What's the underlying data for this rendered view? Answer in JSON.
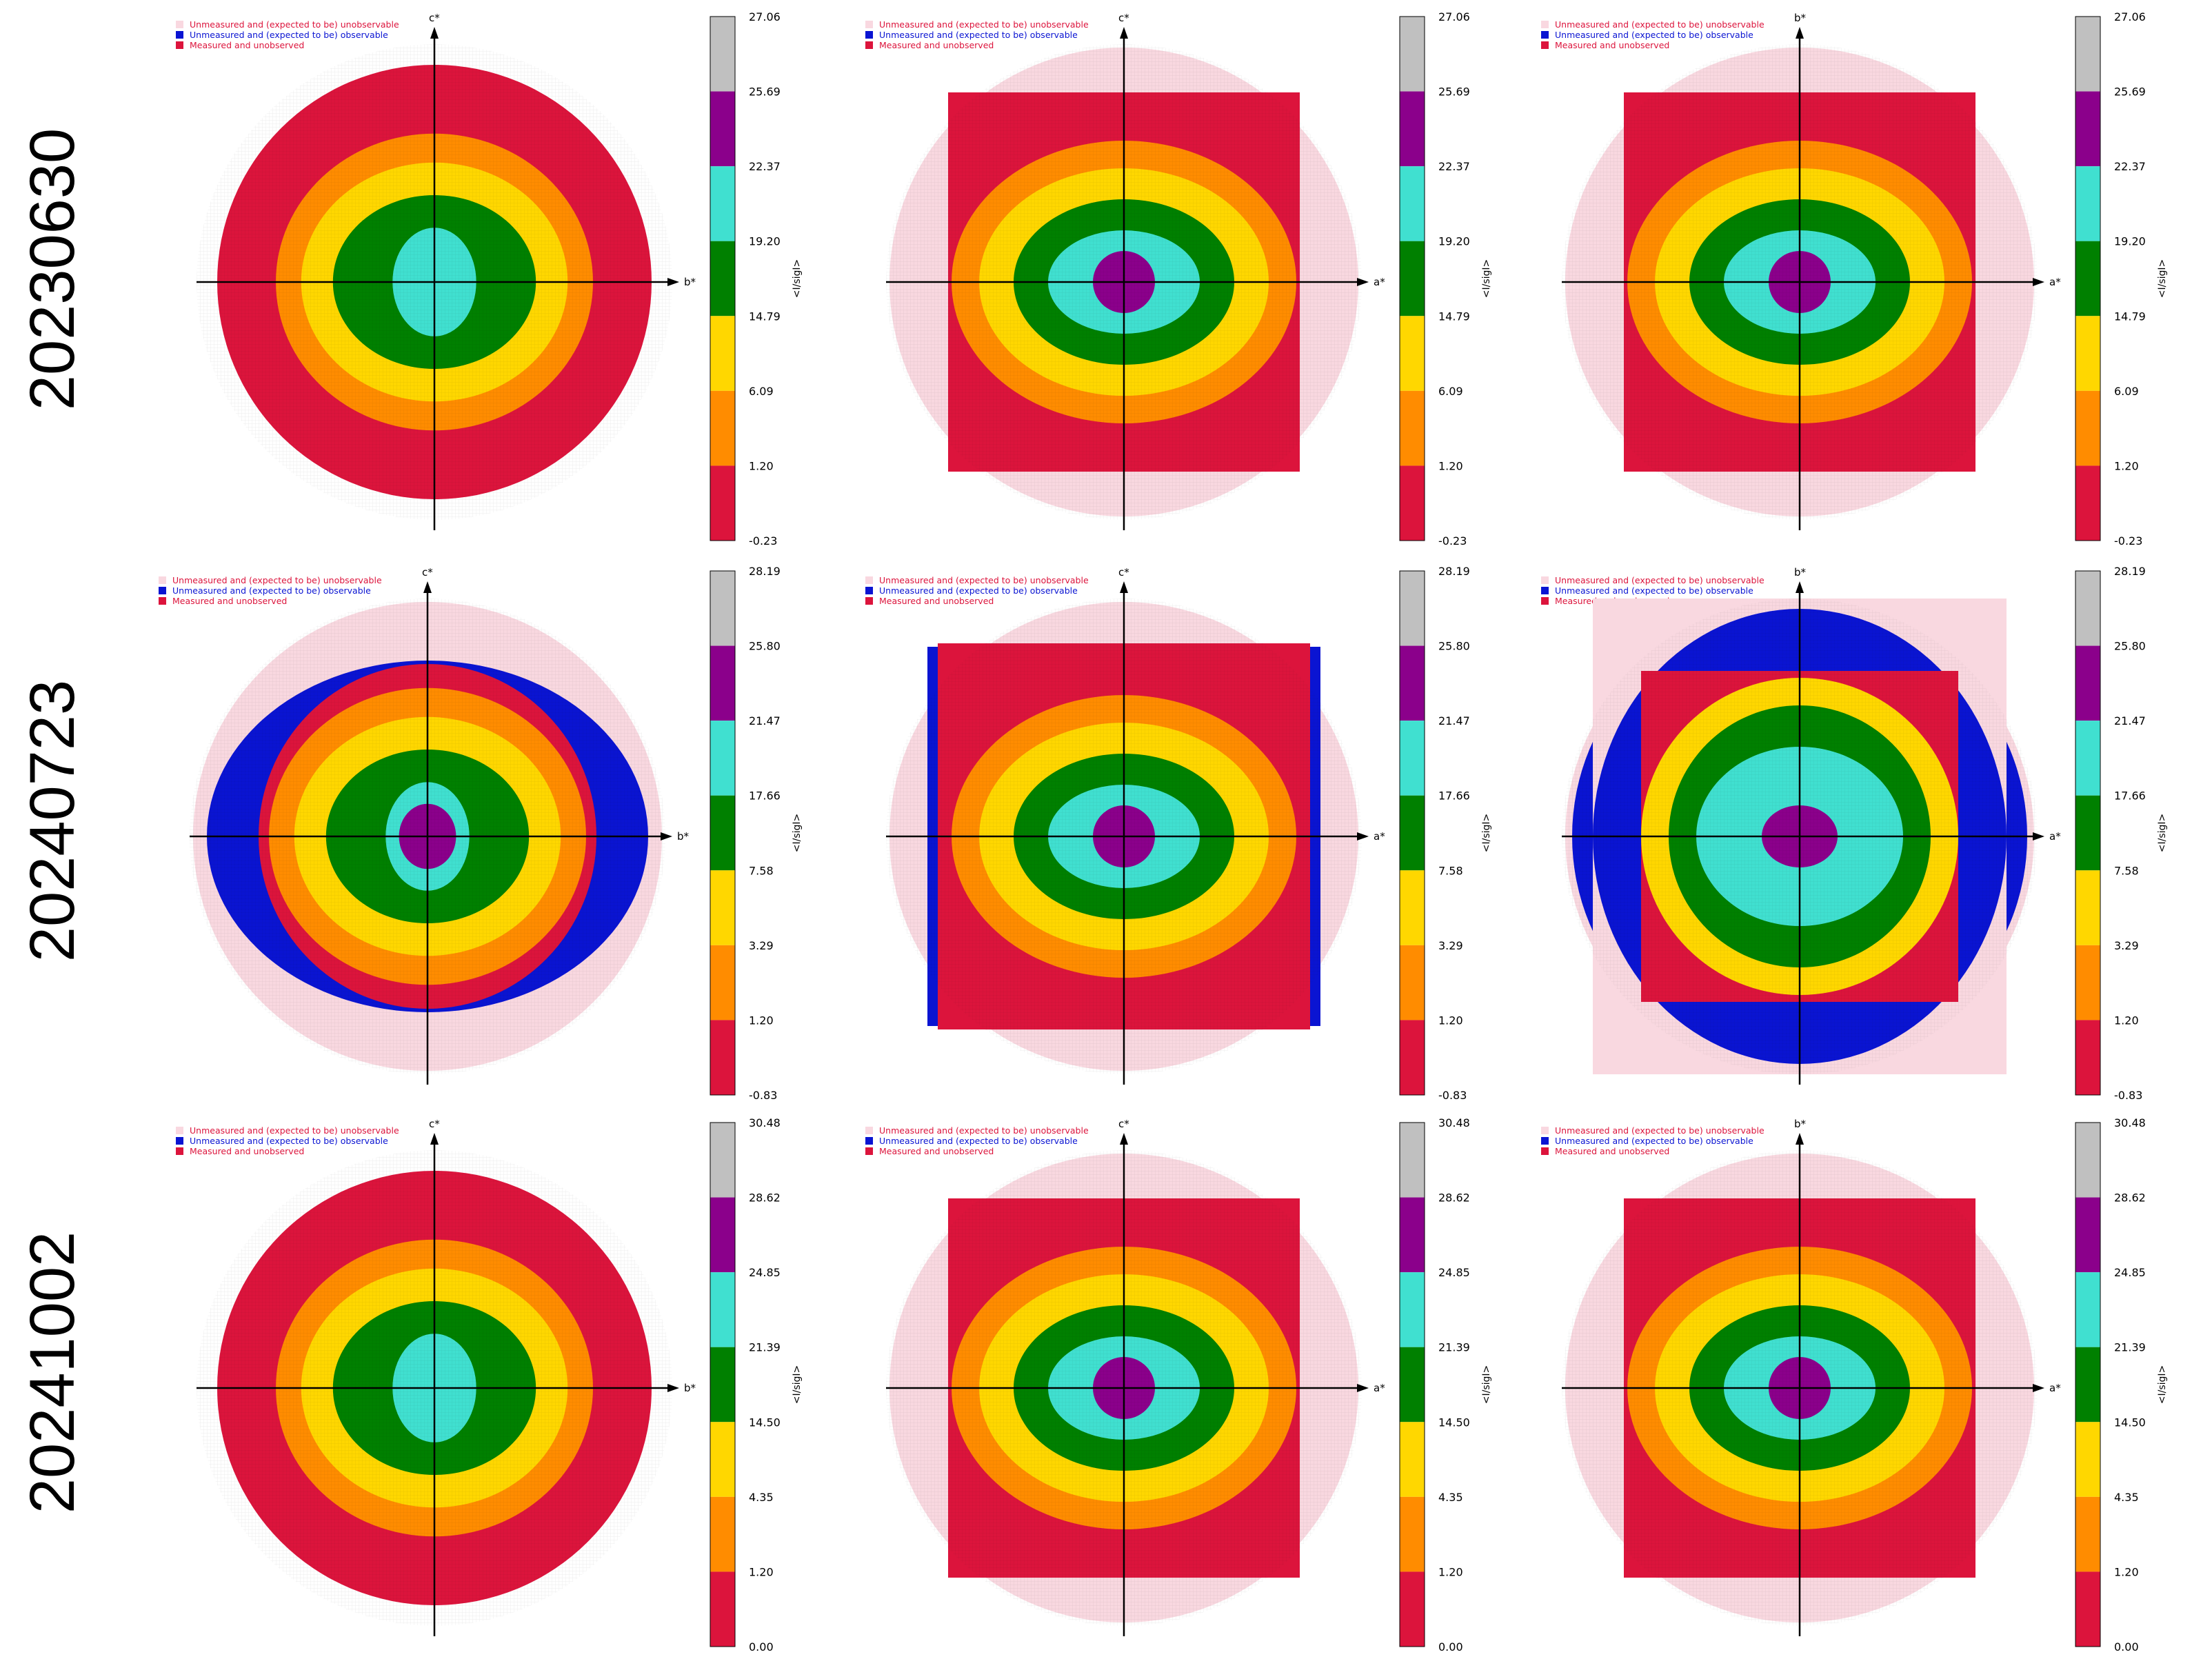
{
  "palette": {
    "red": "#dc143c",
    "orange": "#ff8c00",
    "gold": "#ffd700",
    "green": "#008000",
    "turquoise": "#40e0d0",
    "purple": "#8b008b",
    "grey": "#c0c0c0",
    "pink": "#f9d8e0",
    "blue": "#0a14d2"
  },
  "legend": [
    {
      "label": "Unmeasured and (expected to be) unobservable",
      "swatch": "pink",
      "text_color": "#dc143c"
    },
    {
      "label": "Unmeasured and (expected to be) observable",
      "swatch": "blue",
      "text_color": "#0a14d2"
    },
    {
      "label": "Measured and unobserved",
      "swatch": "red",
      "text_color": "#dc143c"
    }
  ],
  "colorbar_title": "<I/sigI>",
  "chart_data": [
    {
      "type": "heatmap",
      "row": 0,
      "col": 0,
      "row_label": "20230630",
      "view": "b*-c* plane",
      "x_axis_label": "b*",
      "y_axis_label": "c*",
      "colorbar_ticks": [
        "27.06",
        "25.69",
        "22.37",
        "19.20",
        "14.79",
        "6.09",
        "1.20",
        "-0.23"
      ],
      "observable_ring": false,
      "square_mask": false
    },
    {
      "type": "heatmap",
      "row": 0,
      "col": 1,
      "row_label": "20230630",
      "view": "a*-c* plane",
      "x_axis_label": "a*",
      "y_axis_label": "c*",
      "colorbar_ticks": [
        "27.06",
        "25.69",
        "22.37",
        "19.20",
        "14.79",
        "6.09",
        "1.20",
        "-0.23"
      ],
      "observable_ring": false,
      "square_mask": true
    },
    {
      "type": "heatmap",
      "row": 0,
      "col": 2,
      "row_label": "20230630",
      "view": "a*-b* plane",
      "x_axis_label": "a*",
      "y_axis_label": "b*",
      "colorbar_ticks": [
        "27.06",
        "25.69",
        "22.37",
        "19.20",
        "14.79",
        "6.09",
        "1.20",
        "-0.23"
      ],
      "observable_ring": false,
      "square_mask": true
    },
    {
      "type": "heatmap",
      "row": 1,
      "col": 0,
      "row_label": "20240723",
      "view": "b*-c* plane",
      "x_axis_label": "b*",
      "y_axis_label": "c*",
      "colorbar_ticks": [
        "28.19",
        "25.80",
        "21.47",
        "17.66",
        "7.58",
        "3.29",
        "1.20",
        "-0.83"
      ],
      "observable_ring": true,
      "square_mask": false
    },
    {
      "type": "heatmap",
      "row": 1,
      "col": 1,
      "row_label": "20240723",
      "view": "a*-c* plane",
      "x_axis_label": "a*",
      "y_axis_label": "c*",
      "colorbar_ticks": [
        "28.19",
        "25.80",
        "21.47",
        "17.66",
        "7.58",
        "3.29",
        "1.20",
        "-0.83"
      ],
      "observable_ring": true,
      "square_mask": true
    },
    {
      "type": "heatmap",
      "row": 1,
      "col": 2,
      "row_label": "20240723",
      "view": "a*-b* plane",
      "x_axis_label": "a*",
      "y_axis_label": "b*",
      "colorbar_ticks": [
        "28.19",
        "25.80",
        "21.47",
        "17.66",
        "7.58",
        "3.29",
        "1.20",
        "-0.83"
      ],
      "observable_ring": true,
      "square_mask": true
    },
    {
      "type": "heatmap",
      "row": 2,
      "col": 0,
      "row_label": "20241002",
      "view": "b*-c* plane",
      "x_axis_label": "b*",
      "y_axis_label": "c*",
      "colorbar_ticks": [
        "30.48",
        "28.62",
        "24.85",
        "21.39",
        "14.50",
        "4.35",
        "1.20",
        "0.00"
      ],
      "observable_ring": false,
      "square_mask": false
    },
    {
      "type": "heatmap",
      "row": 2,
      "col": 1,
      "row_label": "20241002",
      "view": "a*-c* plane",
      "x_axis_label": "a*",
      "y_axis_label": "c*",
      "colorbar_ticks": [
        "30.48",
        "28.62",
        "24.85",
        "21.39",
        "14.50",
        "4.35",
        "1.20",
        "0.00"
      ],
      "observable_ring": false,
      "square_mask": true
    },
    {
      "type": "heatmap",
      "row": 2,
      "col": 2,
      "row_label": "20241002",
      "view": "a*-b* plane",
      "x_axis_label": "a*",
      "y_axis_label": "b*",
      "colorbar_ticks": [
        "30.48",
        "28.62",
        "24.85",
        "21.39",
        "14.50",
        "4.35",
        "1.20",
        "0.00"
      ],
      "observable_ring": false,
      "square_mask": true
    }
  ],
  "colorbar_colors": [
    "grey",
    "purple",
    "turquoise",
    "green",
    "gold",
    "orange",
    "red"
  ]
}
